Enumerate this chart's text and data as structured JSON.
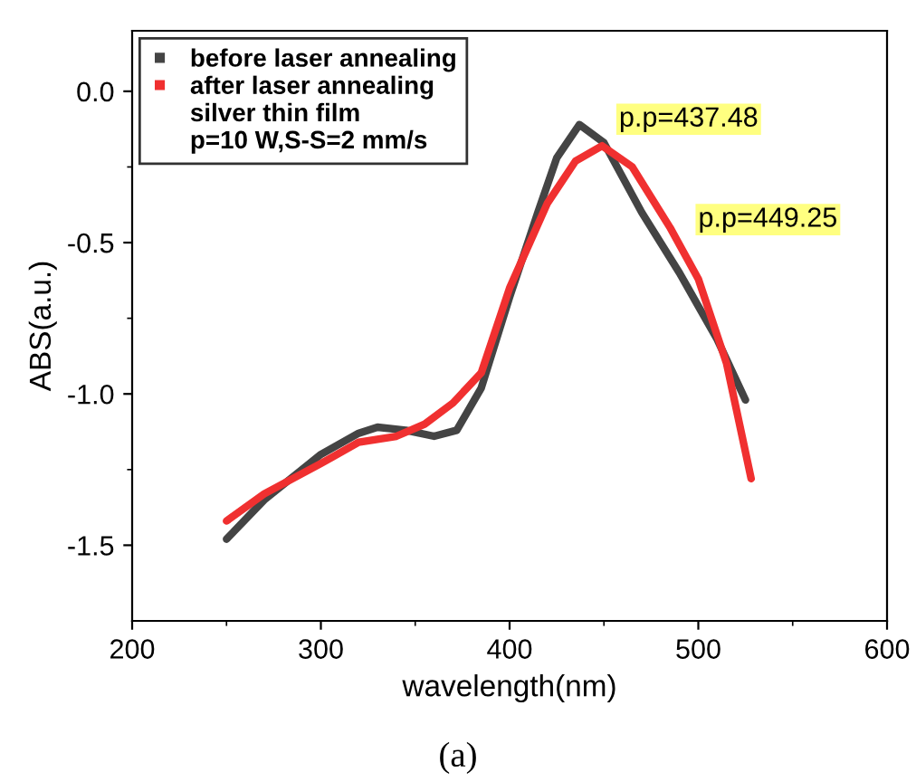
{
  "chart_data": {
    "type": "line",
    "xlabel": "wavelength(nm)",
    "ylabel": "ABS(a.u.)",
    "xlim": [
      200,
      600
    ],
    "xticks": [
      200,
      300,
      400,
      500,
      600
    ],
    "ylim": [
      -1.75,
      0.2
    ],
    "yticks": [
      {
        "value": -1.5,
        "label": "-1.5"
      },
      {
        "value": -1.0,
        "label": "-1.0"
      },
      {
        "value": -0.5,
        "label": "-0.5"
      },
      {
        "value": 0.0,
        "label": "0.0"
      }
    ],
    "grid": false,
    "legend": "top left",
    "line_style": "solid",
    "series": [
      {
        "name": "before laser annealing",
        "color": "#444444",
        "x": [
          250,
          270,
          300,
          320,
          330,
          345,
          360,
          372,
          385,
          400,
          415,
          425,
          437,
          450,
          470,
          490,
          510,
          525
        ],
        "values": [
          -1.48,
          -1.35,
          -1.2,
          -1.13,
          -1.11,
          -1.12,
          -1.14,
          -1.12,
          -0.98,
          -0.68,
          -0.4,
          -0.22,
          -0.11,
          -0.17,
          -0.4,
          -0.6,
          -0.82,
          -1.02
        ]
      },
      {
        "name": "after laser annealing",
        "color": "#f03030",
        "x": [
          250,
          270,
          300,
          320,
          340,
          355,
          370,
          385,
          400,
          420,
          435,
          449,
          465,
          485,
          500,
          515,
          528
        ],
        "values": [
          -1.42,
          -1.33,
          -1.23,
          -1.16,
          -1.14,
          -1.1,
          -1.03,
          -0.93,
          -0.65,
          -0.37,
          -0.23,
          -0.18,
          -0.25,
          -0.45,
          -0.62,
          -0.9,
          -1.28
        ]
      }
    ],
    "annotations": [
      "silver thin film",
      "p=10 W,S-S=2 mm/s",
      "p.p=437.48",
      "p.p=449.25",
      "(a)"
    ]
  }
}
